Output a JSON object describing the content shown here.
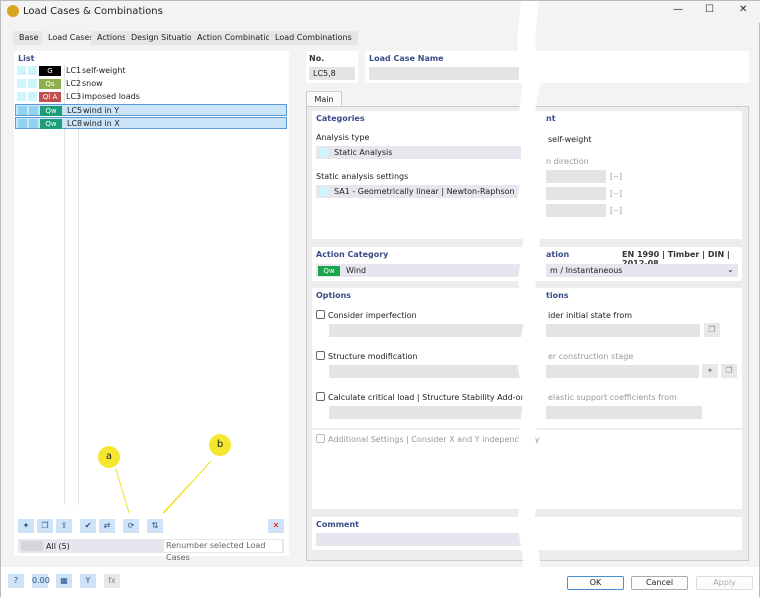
{
  "window": {
    "title": "Load Cases & Combinations",
    "min": "—",
    "max": "☐",
    "close": "✕"
  },
  "tabs": [
    "Base",
    "Load Cases",
    "Actions",
    "Design Situations",
    "Action Combinations",
    "Load Combinations"
  ],
  "active_tab": "Load Cases",
  "list": {
    "header": "List",
    "items": [
      {
        "badge": "G",
        "badge_color": "#000000",
        "no": "LC1",
        "name": "self-weight",
        "selected": false
      },
      {
        "badge": "Qs",
        "badge_color": "#8db04a",
        "no": "LC2",
        "name": "snow",
        "selected": false
      },
      {
        "badge": "Ql A",
        "badge_color": "#c0504d",
        "no": "LC3",
        "name": "imposed loads",
        "selected": false
      },
      {
        "badge": "Qw",
        "badge_color": "#1b9e77",
        "no": "LC5",
        "name": "wind in Y",
        "selected": true
      },
      {
        "badge": "Qw",
        "badge_color": "#1b9e77",
        "no": "LC8",
        "name": "wind in X",
        "selected": true
      }
    ],
    "filter": "All (5)",
    "action_select": "Renumber selected Load Cases"
  },
  "callouts": {
    "a": "a",
    "b": "b"
  },
  "no": {
    "label": "No.",
    "value": "LC5,8"
  },
  "name": {
    "label": "Load Case Name",
    "value": ""
  },
  "main_tab": "Main",
  "categories": {
    "header": "Categories",
    "analysis_type_label": "Analysis type",
    "analysis_type": "Static Analysis",
    "settings_label": "Static analysis settings",
    "settings": "SA1 - Geometrically linear | Newton-Raphson"
  },
  "right_top": {
    "header": "nt",
    "self_weight": "self-weight",
    "direction": "n direction",
    "unit": "[--]"
  },
  "action_category": {
    "header": "Action Category",
    "badge": "Qw",
    "value": "Wind"
  },
  "duration": {
    "header": "ation",
    "norm": "EN 1990 | Timber | DIN | 2012-08",
    "value": "m / Instantaneous"
  },
  "options": {
    "header": "Options",
    "imperfection": "Consider imperfection",
    "modification": "Structure modification",
    "critical": "Calculate critical load | Structure Stability Add-on",
    "additional": "Additional Settings | Consider X and Y independently"
  },
  "options_right": {
    "header": "tions",
    "initial": "ider initial state from",
    "stage": "er construction stage",
    "elastic": "elastic support coefficients from"
  },
  "comment": {
    "header": "Comment",
    "value": ""
  },
  "buttons": {
    "ok": "OK",
    "cancel": "Cancel",
    "apply": "Apply"
  }
}
